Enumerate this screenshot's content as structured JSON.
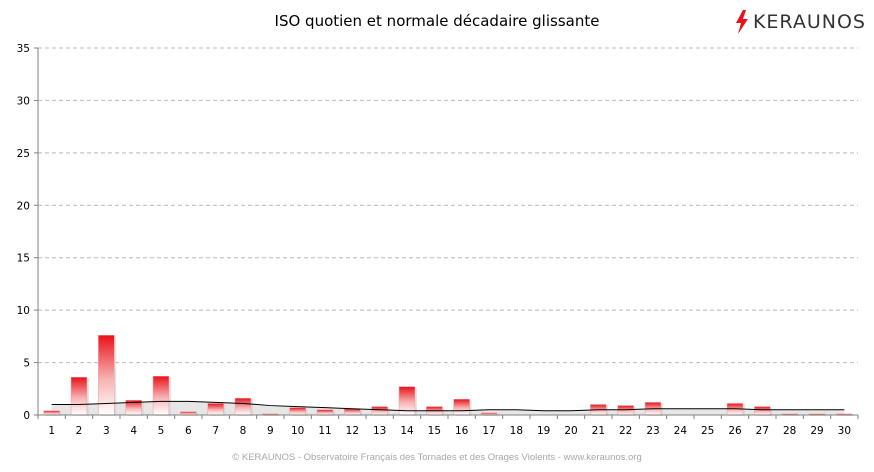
{
  "chart_data": {
    "type": "bar",
    "title": "ISO quotien et normale décadaire glissante",
    "xlabel": "",
    "ylabel": "",
    "ylim": [
      0,
      35
    ],
    "y_ticks": [
      "0",
      "5",
      "10",
      "15",
      "20",
      "25",
      "30",
      "35"
    ],
    "categories": [
      "1",
      "2",
      "3",
      "4",
      "5",
      "6",
      "7",
      "8",
      "9",
      "10",
      "11",
      "12",
      "13",
      "14",
      "15",
      "16",
      "17",
      "18",
      "19",
      "20",
      "21",
      "22",
      "23",
      "24",
      "25",
      "26",
      "27",
      "28",
      "29",
      "30"
    ],
    "series": [
      {
        "type": "bar",
        "values": [
          0.4,
          3.6,
          7.6,
          1.4,
          3.7,
          0.3,
          1.1,
          1.6,
          0.1,
          0.7,
          0.5,
          0.6,
          0.8,
          2.7,
          0.8,
          1.5,
          0.2,
          0,
          0,
          0,
          1.0,
          0.9,
          1.2,
          0,
          0,
          1.1,
          0.8,
          0.1,
          0.1,
          0.1
        ],
        "colors": {
          "top": "#e8121a",
          "bottom": "#ffffff"
        }
      },
      {
        "type": "area",
        "values": [
          1.0,
          1.0,
          1.1,
          1.2,
          1.3,
          1.3,
          1.2,
          1.1,
          0.9,
          0.8,
          0.7,
          0.6,
          0.5,
          0.4,
          0.4,
          0.4,
          0.5,
          0.5,
          0.4,
          0.4,
          0.5,
          0.5,
          0.6,
          0.6,
          0.6,
          0.6,
          0.5,
          0.5,
          0.5,
          0.5
        ],
        "colors": {
          "fill": "#e6e6e6",
          "line": "#000000"
        }
      }
    ],
    "grid": true,
    "legend": "none"
  },
  "logo": {
    "text": "KERAUNOS",
    "icon": "lightning-bolt-icon",
    "icon_color": "#e8121a"
  },
  "footer": "© KERAUNOS - Observatoire Français des Tornades et des Orages Violents - www.keraunos.org"
}
